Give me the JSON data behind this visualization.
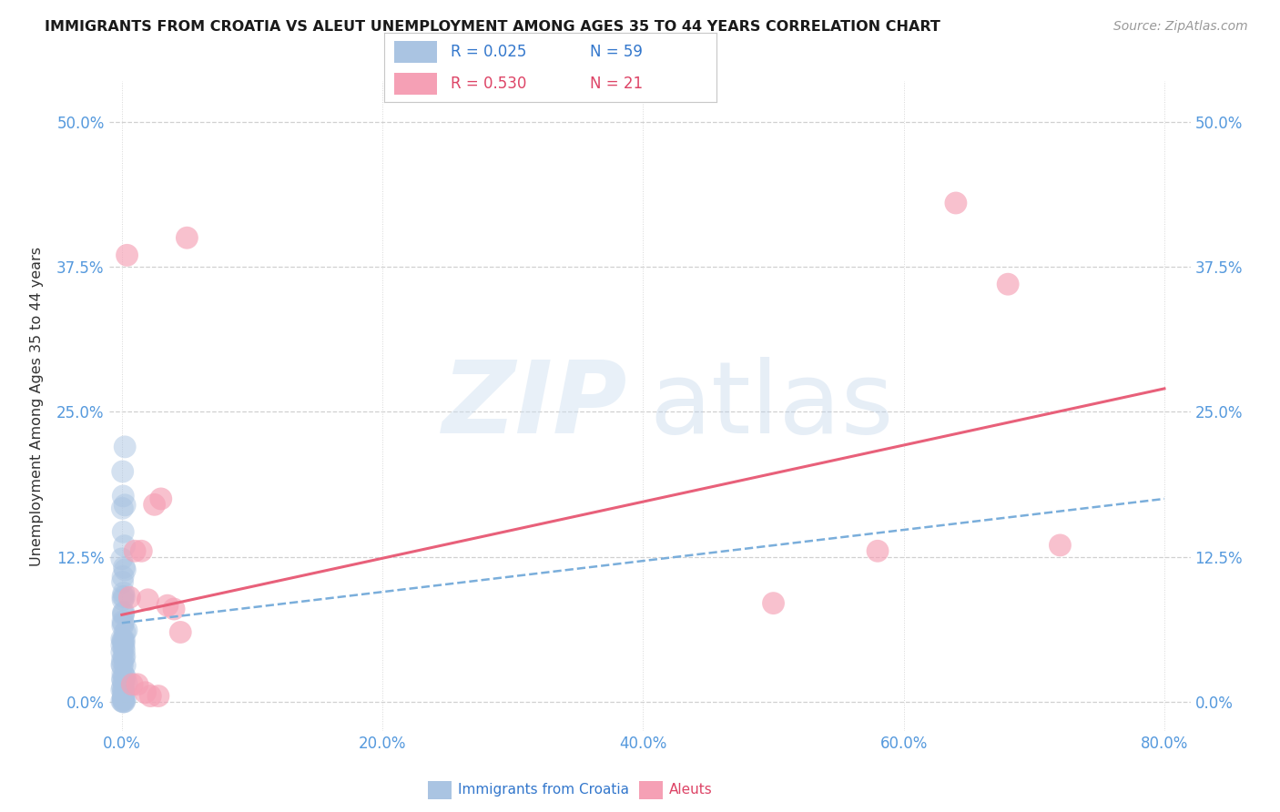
{
  "title": "IMMIGRANTS FROM CROATIA VS ALEUT UNEMPLOYMENT AMONG AGES 35 TO 44 YEARS CORRELATION CHART",
  "source": "Source: ZipAtlas.com",
  "xlabel_tick_vals": [
    0.0,
    0.2,
    0.4,
    0.6,
    0.8
  ],
  "ylabel_tick_vals": [
    0.0,
    0.125,
    0.25,
    0.375,
    0.5
  ],
  "ylabel": "Unemployment Among Ages 35 to 44 years",
  "blue_color": "#aac4e2",
  "pink_color": "#f5a0b5",
  "trendline_blue_color": "#7aaedb",
  "trendline_pink_color": "#e8607a",
  "blue_scatter_x": [
    0.001,
    0.001,
    0.001,
    0.002,
    0.001,
    0.001,
    0.002,
    0.001,
    0.001,
    0.002,
    0.001,
    0.001,
    0.001,
    0.002,
    0.001,
    0.002,
    0.001,
    0.001,
    0.001,
    0.002,
    0.001,
    0.001,
    0.001,
    0.002,
    0.001,
    0.001,
    0.002,
    0.001,
    0.001,
    0.001,
    0.002,
    0.001,
    0.001,
    0.001,
    0.002,
    0.001,
    0.001,
    0.001,
    0.001,
    0.001,
    0.001,
    0.001,
    0.002,
    0.001,
    0.001,
    0.003,
    0.001,
    0.002,
    0.001,
    0.001,
    0.001,
    0.001,
    0.001,
    0.001,
    0.001,
    0.001,
    0.001,
    0.001,
    0.002
  ],
  "blue_scatter_y": [
    0.215,
    0.2,
    0.185,
    0.17,
    0.16,
    0.148,
    0.138,
    0.128,
    0.12,
    0.115,
    0.108,
    0.102,
    0.095,
    0.09,
    0.085,
    0.082,
    0.078,
    0.075,
    0.072,
    0.07,
    0.067,
    0.065,
    0.062,
    0.06,
    0.057,
    0.055,
    0.052,
    0.05,
    0.048,
    0.046,
    0.044,
    0.042,
    0.04,
    0.038,
    0.036,
    0.034,
    0.032,
    0.03,
    0.028,
    0.026,
    0.024,
    0.022,
    0.02,
    0.018,
    0.016,
    0.014,
    0.012,
    0.01,
    0.008,
    0.006,
    0.004,
    0.003,
    0.002,
    0.001,
    0.001,
    0.0,
    0.0,
    0.0,
    0.0
  ],
  "pink_scatter_x": [
    0.004,
    0.01,
    0.025,
    0.006,
    0.015,
    0.03,
    0.02,
    0.05,
    0.035,
    0.045,
    0.5,
    0.58,
    0.64,
    0.68,
    0.72,
    0.008,
    0.012,
    0.018,
    0.04,
    0.028,
    0.022
  ],
  "pink_scatter_y": [
    0.385,
    0.13,
    0.17,
    0.09,
    0.13,
    0.175,
    0.088,
    0.4,
    0.083,
    0.06,
    0.085,
    0.13,
    0.43,
    0.36,
    0.135,
    0.015,
    0.015,
    0.008,
    0.08,
    0.005,
    0.005
  ],
  "blue_trend_x": [
    0.0,
    0.8
  ],
  "blue_trend_y": [
    0.068,
    0.175
  ],
  "pink_trend_x": [
    0.0,
    0.8
  ],
  "pink_trend_y": [
    0.075,
    0.27
  ],
  "xlim": [
    -0.01,
    0.82
  ],
  "ylim": [
    -0.025,
    0.535
  ]
}
